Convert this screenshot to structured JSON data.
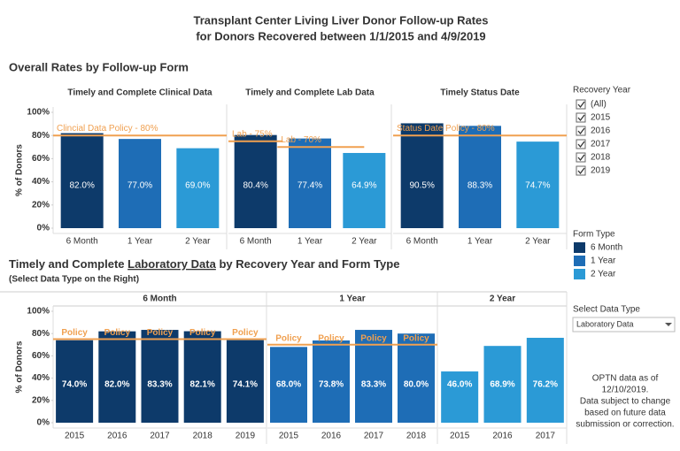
{
  "title_lines": [
    "Transplant Center Living Liver Donor Follow-up Rates",
    "for Donors Recovered between 1/1/2015 and 4/9/2019"
  ],
  "section1_title": "Overall Rates by Follow-up Form",
  "section2_title": [
    "Timely and Complete ",
    "Laboratory Data",
    " by Recovery Year and Form Type"
  ],
  "section2_subtitle": "(Select Data Type on the Right)",
  "recovery_year_filter": {
    "title": "Recovery Year",
    "options": [
      "(All)",
      "2015",
      "2016",
      "2017",
      "2018",
      "2019"
    ]
  },
  "form_type_legend": {
    "title": "Form Type",
    "items": [
      {
        "name": "6 Month",
        "color": "#0d3a6a"
      },
      {
        "name": "1 Year",
        "color": "#1e6db6"
      },
      {
        "name": "2 Year",
        "color": "#2b9ad6"
      }
    ]
  },
  "data_type_selector": {
    "title": "Select Data Type",
    "selected": "Laboratory Data"
  },
  "note_lines": [
    "OPTN data as of",
    "12/10/2019.",
    "Data subject to change",
    "based on future data",
    "submission or correction."
  ],
  "chart_data": [
    {
      "type": "bar",
      "title": "Timely and Complete Clinical Data",
      "categories": [
        "6 Month",
        "1 Year",
        "2 Year"
      ],
      "values": [
        82.0,
        77.0,
        69.0
      ],
      "value_labels": [
        "82.0%",
        "77.0%",
        "69.0%"
      ],
      "colors": [
        "#0d3a6a",
        "#1e6db6",
        "#2b9ad6"
      ],
      "ylim": [
        0,
        100
      ],
      "yticks": [
        {
          "value": 0,
          "label": "0%"
        },
        {
          "value": 20,
          "label": "20%"
        },
        {
          "value": 40,
          "label": "40%"
        },
        {
          "value": 60,
          "label": "60%"
        },
        {
          "value": 80,
          "label": "80%"
        },
        {
          "value": 100,
          "label": "100%"
        }
      ],
      "y_label": "% of Donors",
      "policy_lines": [
        {
          "value": 80,
          "label": "Clincial Data Policy - 80%"
        }
      ],
      "policy_color": "#f0a050"
    },
    {
      "type": "bar",
      "title": "Timely and Complete Lab Data",
      "categories": [
        "6 Month",
        "1 Year",
        "2 Year"
      ],
      "values": [
        80.4,
        77.4,
        64.9
      ],
      "value_labels": [
        "80.4%",
        "77.4%",
        "64.9%"
      ],
      "colors": [
        "#0d3a6a",
        "#1e6db6",
        "#2b9ad6"
      ],
      "ylim": [
        0,
        100
      ],
      "policy_lines": [
        {
          "value": 75,
          "label": "Lab - 75%"
        },
        {
          "value": 70,
          "label": "Lab - 70%"
        }
      ],
      "policy_color": "#f0a050"
    },
    {
      "type": "bar",
      "title": "Timely Status Date",
      "categories": [
        "6 Month",
        "1 Year",
        "2 Year"
      ],
      "values": [
        90.5,
        88.3,
        74.7
      ],
      "value_labels": [
        "90.5%",
        "88.3%",
        "74.7%"
      ],
      "colors": [
        "#0d3a6a",
        "#1e6db6",
        "#2b9ad6"
      ],
      "ylim": [
        0,
        100
      ],
      "policy_lines": [
        {
          "value": 80,
          "label": "Status Date Policy - 80%"
        }
      ],
      "policy_color": "#f0a050"
    },
    {
      "type": "bar",
      "title": "6 Month",
      "categories": [
        "2015",
        "2016",
        "2017",
        "2018",
        "2019"
      ],
      "values": [
        74.0,
        82.0,
        83.3,
        82.1,
        74.1
      ],
      "value_labels": [
        "74.0%",
        "82.0%",
        "83.3%",
        "82.1%",
        "74.1%"
      ],
      "color": "#0d3a6a",
      "ylim": [
        0,
        100
      ],
      "yticks": [
        {
          "value": 0,
          "label": "0%"
        },
        {
          "value": 20,
          "label": "20%"
        },
        {
          "value": 40,
          "label": "40%"
        },
        {
          "value": 60,
          "label": "60%"
        },
        {
          "value": 80,
          "label": "80%"
        },
        {
          "value": 100,
          "label": "100%"
        }
      ],
      "y_label": "% of Donors",
      "policy_lines": [
        {
          "value": 75,
          "label": "Policy"
        }
      ],
      "policy_color": "#f0a050"
    },
    {
      "type": "bar",
      "title": "1 Year",
      "categories": [
        "2015",
        "2016",
        "2017",
        "2018"
      ],
      "values": [
        68.0,
        73.8,
        83.3,
        80.0
      ],
      "value_labels": [
        "68.0%",
        "73.8%",
        "83.3%",
        "80.0%"
      ],
      "color": "#1e6db6",
      "ylim": [
        0,
        100
      ],
      "policy_lines": [
        {
          "value": 70,
          "label": "Policy"
        }
      ],
      "policy_color": "#f0a050"
    },
    {
      "type": "bar",
      "title": "2 Year",
      "categories": [
        "2015",
        "2016",
        "2017"
      ],
      "values": [
        46.0,
        68.9,
        76.2
      ],
      "value_labels": [
        "46.0%",
        "68.9%",
        "76.2%"
      ],
      "color": "#2b9ad6",
      "ylim": [
        0,
        100
      ],
      "policy_lines": [],
      "policy_color": "#f0a050"
    }
  ]
}
